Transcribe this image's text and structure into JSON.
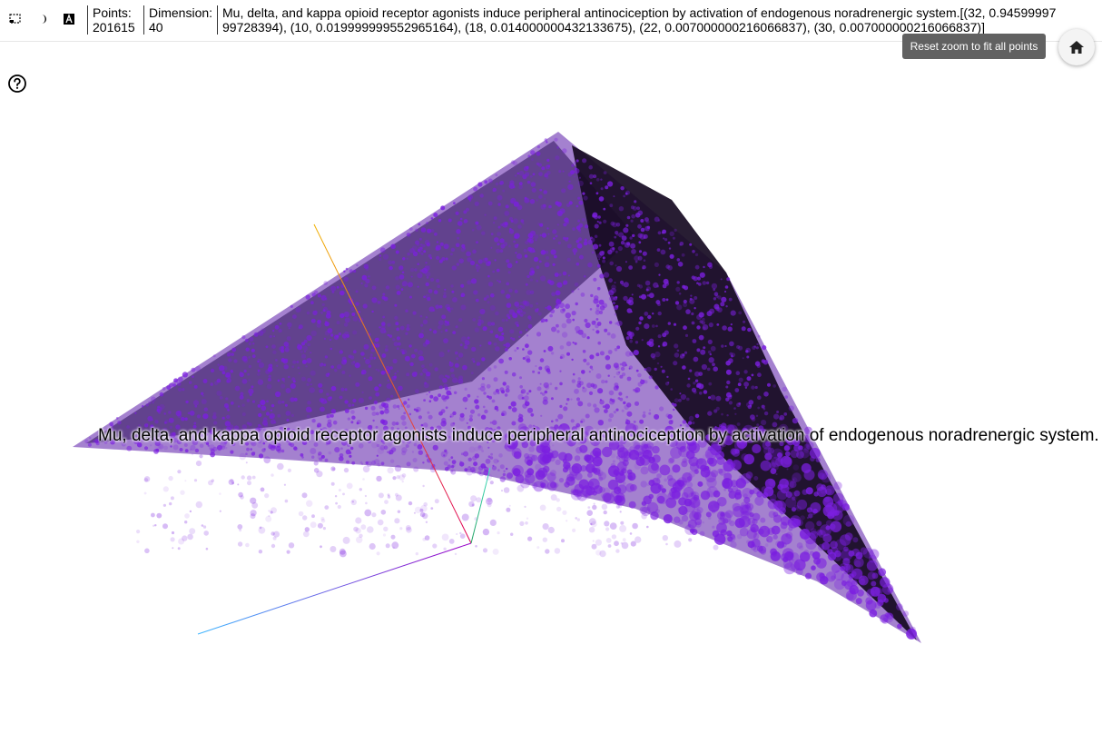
{
  "toolbar": {
    "select_icon": "selection-rectangle-icon",
    "night_icon": "night-mode-icon",
    "label_icon": "label-toggle-icon",
    "points_label": "Points:",
    "points_value": "201615",
    "dimension_label": "Dimension:",
    "dimension_value": "40",
    "caption": "Mu, delta, and kappa opioid receptor agonists induce peripheral antinociception by activation of endogenous noradrenergic system.[(32, 0.9459999799728394), (10, 0.019999999552965164), (18, 0.014000000432133675), (22, 0.007000000216066837), (30, 0.007000000216066837)]"
  },
  "tooltip": {
    "text": "Reset zoom to fit all points"
  },
  "home_button": {
    "icon": "home-icon"
  },
  "help": {
    "icon": "help-circle-icon"
  },
  "plot": {
    "hovered_label": "Mu, delta, and kappa opioid receptor agonists induce peripheral antinociception by activation of endogenous noradrenergic system.",
    "point_color": "#7b1fe0",
    "dense_color": "#160a22"
  }
}
